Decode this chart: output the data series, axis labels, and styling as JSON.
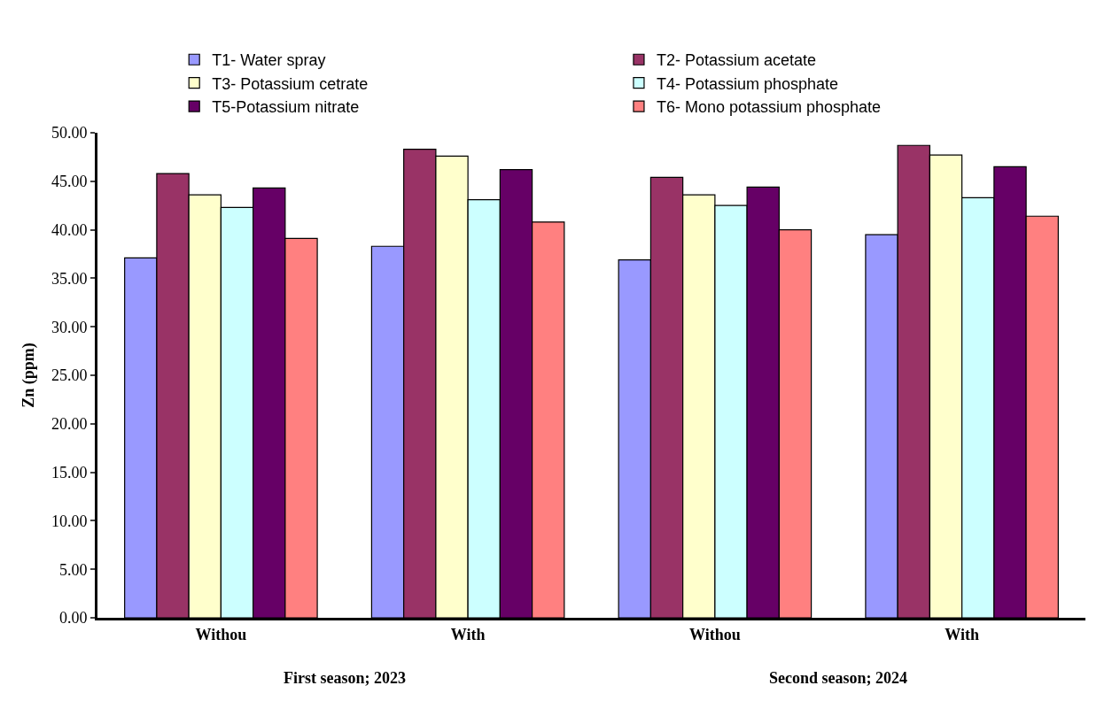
{
  "chart_data": {
    "type": "bar",
    "ylabel": "Zn (ppm)",
    "categories": [
      "Withou",
      "With",
      "Withou",
      "With"
    ],
    "annotations": [
      "First season; 2023",
      "Second season; 2024"
    ],
    "series": [
      {
        "name": "T1- Water spray",
        "color": "#9999ff",
        "values": [
          37.1,
          38.3,
          36.9,
          39.5
        ]
      },
      {
        "name": "T2- Potassium acetate",
        "color": "#993366",
        "values": [
          45.8,
          48.3,
          45.4,
          48.7
        ]
      },
      {
        "name": "T3- Potassium cetrate",
        "color": "#ffffcc",
        "values": [
          43.6,
          47.6,
          43.6,
          47.7
        ]
      },
      {
        "name": "T4- Potassium phosphate",
        "color": "#ccffff",
        "values": [
          42.3,
          43.1,
          42.5,
          43.3
        ]
      },
      {
        "name": "T5-Potassium nitrate",
        "color": "#660066",
        "values": [
          44.3,
          46.2,
          44.4,
          46.5
        ]
      },
      {
        "name": "T6- Mono potassium phosphate",
        "color": "#ff8080",
        "values": [
          39.1,
          40.8,
          40.0,
          41.4
        ]
      }
    ],
    "ylim": [
      0,
      50
    ],
    "yticks": [
      {
        "value": 0,
        "label": "0.00"
      },
      {
        "value": 5,
        "label": "5.00"
      },
      {
        "value": 10,
        "label": "10.00"
      },
      {
        "value": 15,
        "label": "15.00"
      },
      {
        "value": 20,
        "label": "20.00"
      },
      {
        "value": 25,
        "label": "25.00"
      },
      {
        "value": 30,
        "label": "30.00"
      },
      {
        "value": 35,
        "label": "35.00"
      },
      {
        "value": 40,
        "label": "40.00"
      },
      {
        "value": 45,
        "label": "45.00"
      },
      {
        "value": 50,
        "label": "50.00"
      }
    ],
    "legend": "top",
    "grid": false
  }
}
